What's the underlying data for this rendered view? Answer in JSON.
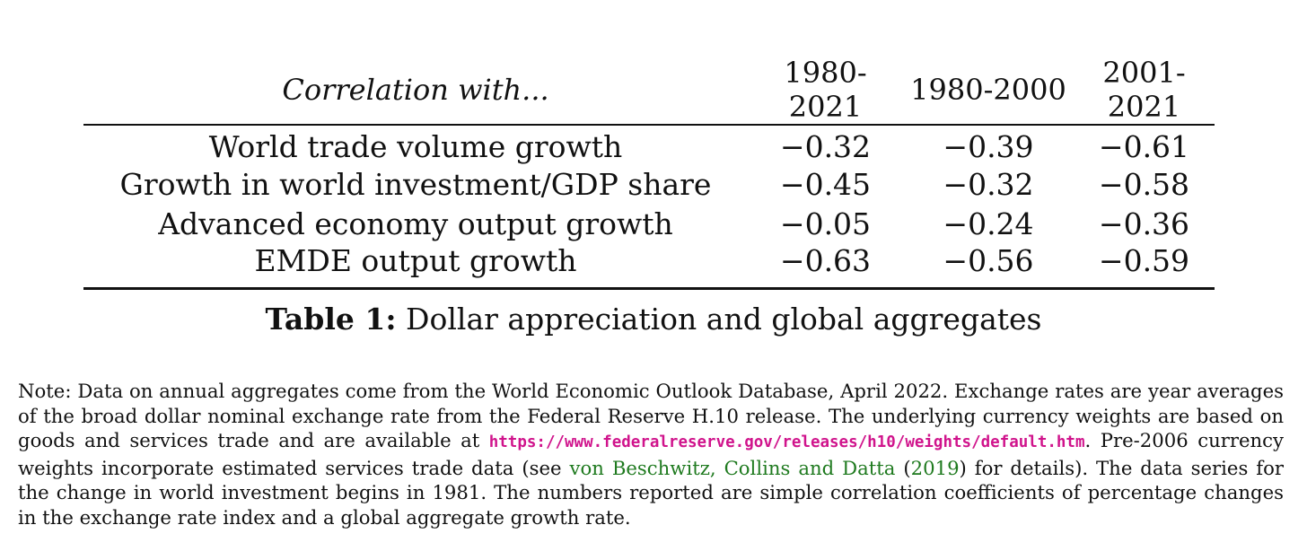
{
  "table": {
    "header": {
      "label": "Correlation with...",
      "periods": [
        "1980-2021",
        "1980-2000",
        "2001-2021"
      ]
    },
    "rows": [
      {
        "label": "World trade volume growth",
        "values": [
          "−0.32",
          "−0.39",
          "−0.61"
        ]
      },
      {
        "label": "Growth in world investment/GDP share",
        "values": [
          "−0.45",
          "−0.32",
          "−0.58"
        ]
      },
      {
        "label": "Advanced economy output growth",
        "values": [
          "−0.05",
          "−0.24",
          "−0.36"
        ]
      },
      {
        "label": "EMDE output growth",
        "values": [
          "−0.63",
          "−0.56",
          "−0.59"
        ]
      }
    ]
  },
  "caption": {
    "label": "Table 1:",
    "text": "Dollar appreciation and global aggregates"
  },
  "note": {
    "part1": "Note: Data on annual aggregates come from the World Economic Outlook Database, April 2022. Exchange rates are year averages of the broad dollar nominal exchange rate from the Federal Reserve H.10 release. The underlying currency weights are based on goods and services trade and are available at ",
    "url": "https://www.federalreserve.gov/releases/h10/weights/default.htm",
    "part2": ". Pre-2006 currency weights incorporate estimated services trade data (see ",
    "citation_authors": "von Beschwitz, Collins and Datta",
    "part3": " (",
    "citation_year": "2019",
    "part4": ") for details). The data series for the change in world investment begins in 1981. The numbers reported are simple correlation coefficients of percentage changes in the exchange rate index and a global aggregate growth rate."
  }
}
